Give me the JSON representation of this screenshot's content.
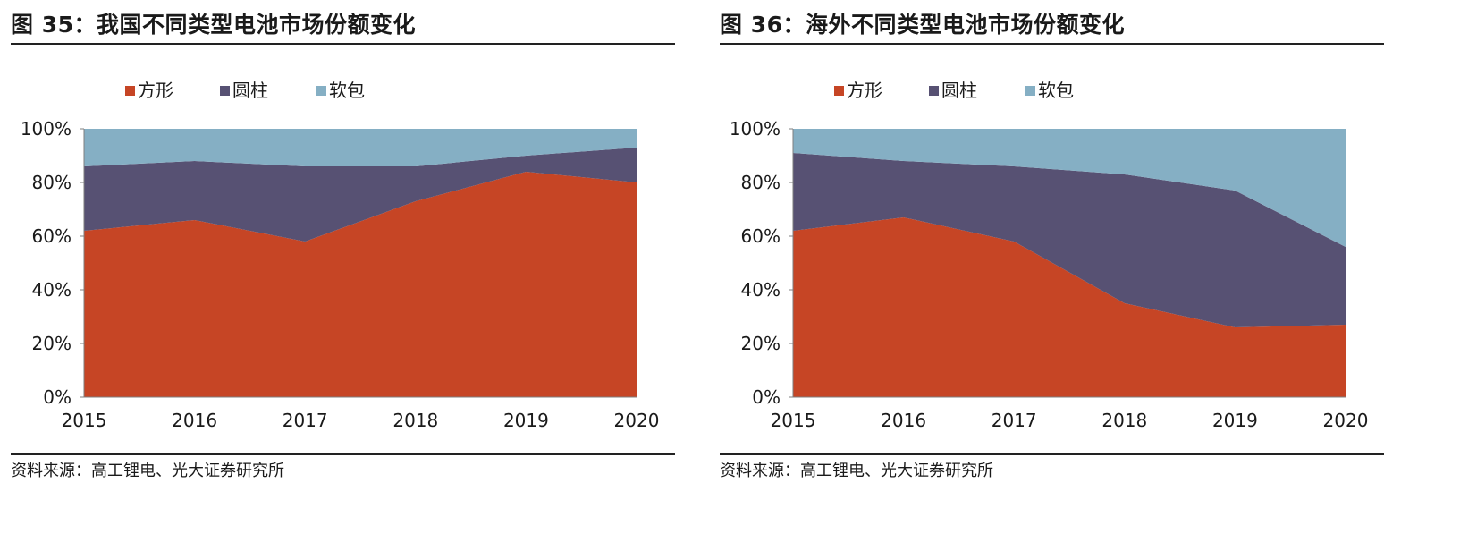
{
  "figures": [
    {
      "title": "图 35：我国不同类型电池市场份额变化",
      "source": "资料来源：高工锂电、光大证券研究所"
    },
    {
      "title": "图 36：海外不同类型电池市场份额变化",
      "source": "资料来源：高工锂电、光大证券研究所"
    }
  ],
  "colors": {
    "prismatic": "#c64525",
    "cylindrical": "#575173",
    "pouch": "#85afc4",
    "axis": "#7f7f7f"
  },
  "chart_data": [
    {
      "type": "area",
      "stacked": true,
      "percent": true,
      "x": [
        "2015",
        "2016",
        "2017",
        "2018",
        "2019",
        "2020"
      ],
      "series": [
        {
          "name": "方形",
          "values": [
            62,
            66,
            58,
            73,
            84,
            80
          ]
        },
        {
          "name": "圆柱",
          "values": [
            24,
            22,
            28,
            13,
            6,
            13
          ]
        },
        {
          "name": "软包",
          "values": [
            14,
            12,
            14,
            14,
            10,
            7
          ]
        }
      ],
      "ylim": [
        0,
        100
      ],
      "yticks": [
        "0%",
        "20%",
        "40%",
        "60%",
        "80%",
        "100%"
      ],
      "legend": "top",
      "grid": false
    },
    {
      "type": "area",
      "stacked": true,
      "percent": true,
      "x": [
        "2015",
        "2016",
        "2017",
        "2018",
        "2019",
        "2020"
      ],
      "series": [
        {
          "name": "方形",
          "values": [
            62,
            67,
            58,
            35,
            26,
            27
          ]
        },
        {
          "name": "圆柱",
          "values": [
            29,
            21,
            28,
            48,
            51,
            29
          ]
        },
        {
          "name": "软包",
          "values": [
            9,
            12,
            14,
            17,
            23,
            44
          ]
        }
      ],
      "ylim": [
        0,
        100
      ],
      "yticks": [
        "0%",
        "20%",
        "40%",
        "60%",
        "80%",
        "100%"
      ],
      "legend": "top",
      "grid": false
    }
  ]
}
